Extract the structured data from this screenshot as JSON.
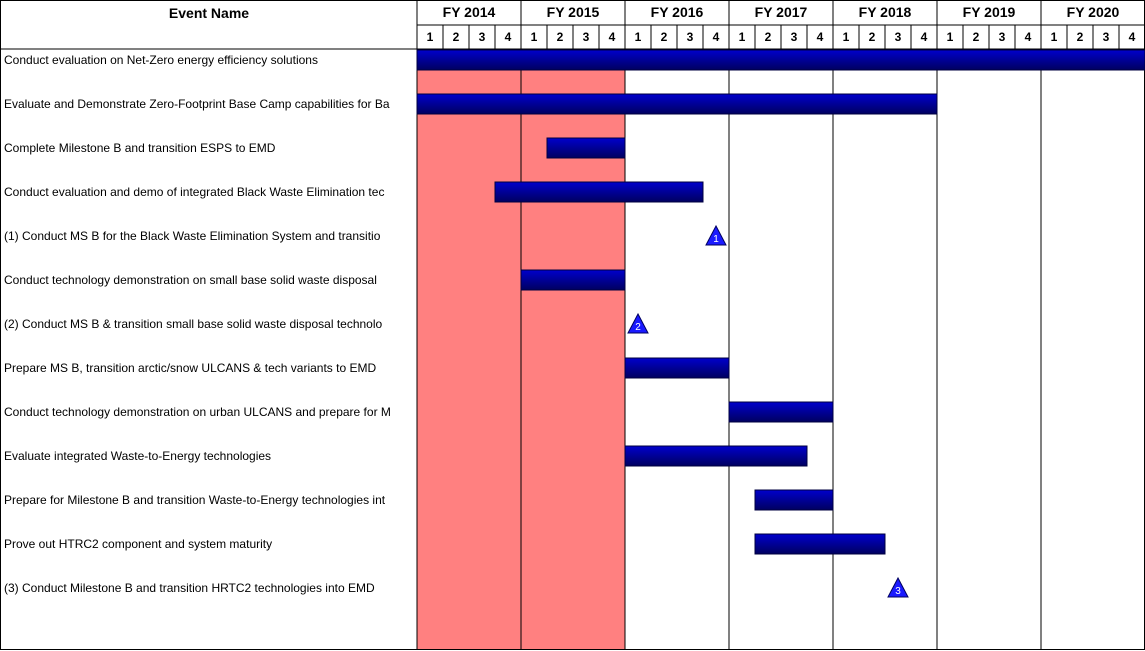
{
  "header": {
    "event_name_label": "Event Name"
  },
  "colors": {
    "bar_fill": "#0000cc",
    "bar_dark": "#000060",
    "highlight": "#ff8080",
    "milestone": "#1a1aff"
  },
  "chart_data": {
    "type": "gantt",
    "years": [
      "FY 2014",
      "FY 2015",
      "FY 2016",
      "FY 2017",
      "FY 2018",
      "FY 2019",
      "FY 2020"
    ],
    "quarters": [
      "1",
      "2",
      "3",
      "4"
    ],
    "highlighted_years": [
      "FY 2014",
      "FY 2015"
    ],
    "tasks": [
      {
        "name": "Conduct evaluation on Net-Zero energy efficiency solutions",
        "start": "FY 2014 Q1",
        "end": "FY 2020 Q4"
      },
      {
        "name": "Evaluate and Demonstrate Zero-Footprint Base Camp capabilities for Ba",
        "start": "FY 2014 Q1",
        "end": "FY 2018 Q4"
      },
      {
        "name": "Complete Milestone B and transition ESPS to EMD",
        "start": "FY 2015 Q2",
        "end": "FY 2015 Q4"
      },
      {
        "name": "Conduct evaluation and demo of integrated Black Waste Elimination tec",
        "start": "FY 2014 Q4",
        "end": "FY 2016 Q3"
      },
      {
        "name": "(1) Conduct MS B for the Black Waste Elimination System and transitio",
        "milestone": "1",
        "at": "FY 2016 Q4"
      },
      {
        "name": "Conduct technology demonstration on small base solid waste disposal",
        "start": "FY 2015 Q1",
        "end": "FY 2015 Q4"
      },
      {
        "name": "(2) Conduct MS B & transition small base solid waste disposal technolo",
        "milestone": "2",
        "at": "FY 2016 Q1"
      },
      {
        "name": "Prepare MS B, transition arctic/snow ULCANS & tech variants to EMD",
        "start": "FY 2016 Q1",
        "end": "FY 2016 Q4"
      },
      {
        "name": "Conduct technology demonstration on urban ULCANS and prepare for M",
        "start": "FY 2017 Q1",
        "end": "FY 2017 Q4"
      },
      {
        "name": "Evaluate integrated Waste-to-Energy technologies",
        "start": "FY 2016 Q1",
        "end": "FY 2017 Q3"
      },
      {
        "name": "Prepare for Milestone B and transition Waste-to-Energy technologies int",
        "start": "FY 2017 Q2",
        "end": "FY 2017 Q4"
      },
      {
        "name": "Prove out HTRC2 component and system maturity",
        "start": "FY 2017 Q2",
        "end": "FY 2018 Q2"
      },
      {
        "name": "(3) Conduct Milestone B and transition HRTC2 technologies into EMD",
        "milestone": "3",
        "at": "FY 2018 Q3"
      }
    ]
  }
}
